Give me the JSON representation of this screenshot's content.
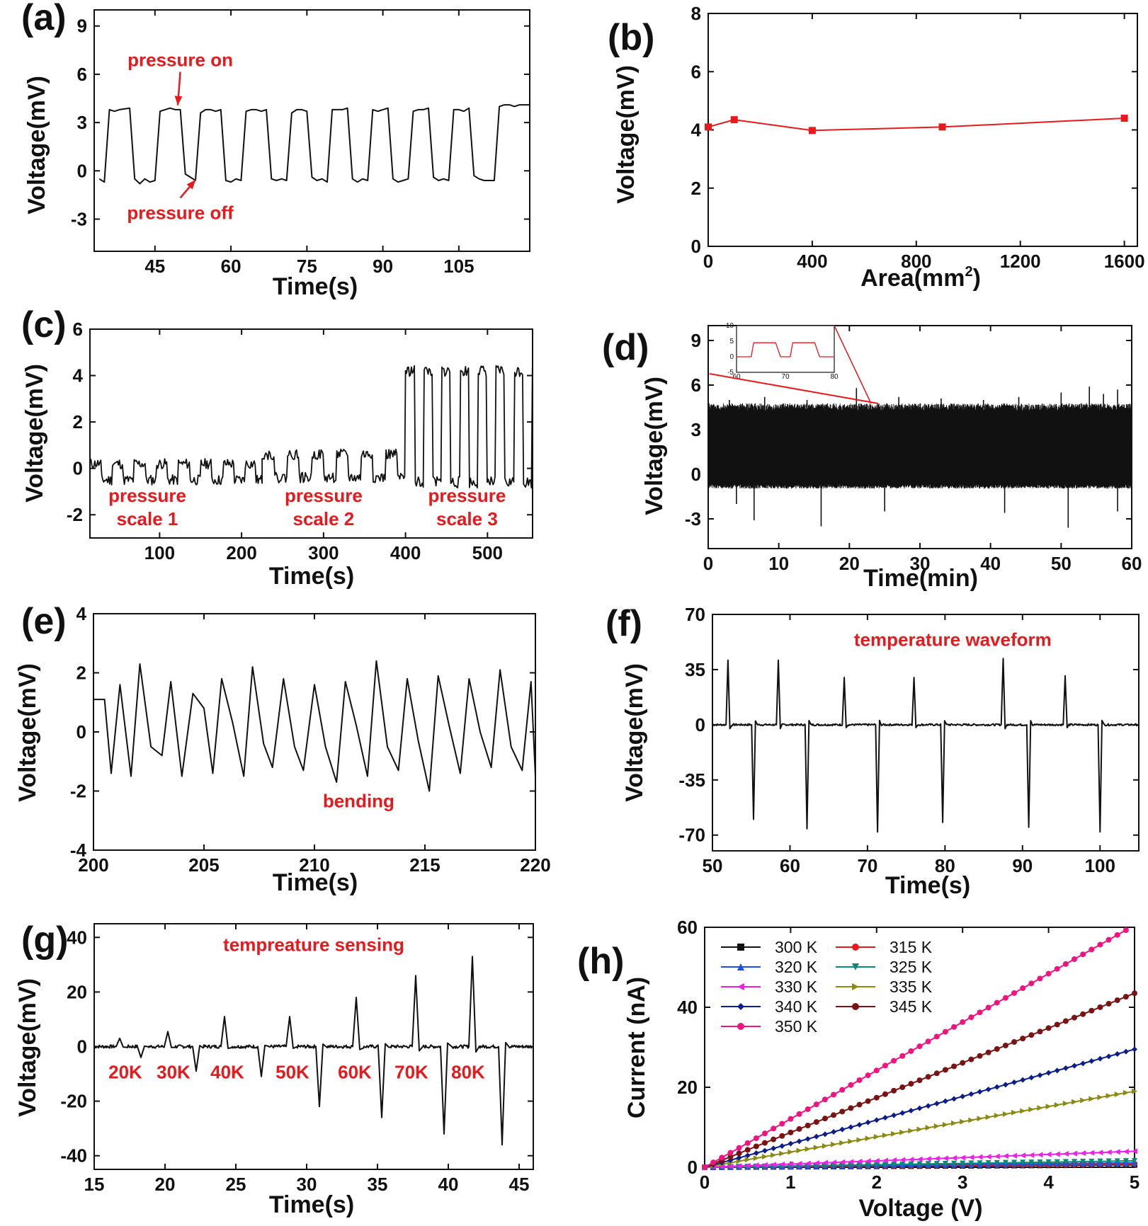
{
  "figure": {
    "panels": [
      {
        "id": "a",
        "label": "(a)",
        "type": "line",
        "xlabel": "Time(s)",
        "ylabel": "Voltage(mV)",
        "xlim": [
          33,
          119
        ],
        "ylim": [
          -5,
          10
        ],
        "xticks": [
          45,
          60,
          75,
          90,
          105
        ],
        "yticks": [
          -3,
          0,
          3,
          6,
          9
        ],
        "series": [
          {
            "color": "#111111",
            "x": [
              34,
              35,
              36,
              37,
              38,
              40,
              41,
              42,
              43,
              44,
              45,
              46,
              47,
              48,
              49,
              50,
              51,
              52,
              53,
              54,
              55,
              56,
              57,
              58,
              59,
              60,
              61,
              62,
              63,
              64,
              65,
              66,
              67,
              68,
              69,
              70,
              71,
              72,
              73,
              74,
              75,
              76,
              77,
              78,
              79,
              80,
              81,
              82,
              83,
              84,
              85,
              86,
              87,
              88,
              89,
              90,
              91,
              92,
              93,
              94,
              95,
              96,
              97,
              98,
              99,
              100,
              101,
              102,
              103,
              104,
              105,
              106,
              107,
              108,
              109,
              110,
              111,
              112,
              113,
              114,
              115,
              116,
              117,
              118,
              119
            ],
            "y": [
              -0.5,
              -0.7,
              3.8,
              3.7,
              3.8,
              3.9,
              -0.5,
              -0.8,
              -0.5,
              -0.7,
              -0.6,
              3.7,
              3.8,
              3.9,
              3.8,
              3.8,
              -0.2,
              -0.4,
              -0.6,
              3.6,
              3.8,
              3.8,
              3.7,
              3.8,
              -0.6,
              -0.7,
              -0.5,
              -0.6,
              3.7,
              3.8,
              3.8,
              3.7,
              3.8,
              -0.5,
              -0.6,
              -0.5,
              -0.6,
              3.6,
              3.8,
              3.8,
              3.7,
              -0.4,
              -0.6,
              -0.5,
              -0.7,
              3.8,
              3.8,
              3.8,
              3.9,
              -0.5,
              -0.7,
              -0.5,
              -0.6,
              3.8,
              3.7,
              3.8,
              3.9,
              -0.5,
              -0.7,
              -0.6,
              -0.5,
              3.7,
              3.8,
              3.8,
              3.9,
              -0.4,
              -0.6,
              -0.5,
              -0.6,
              3.8,
              3.8,
              3.7,
              3.9,
              -0.3,
              -0.5,
              -0.6,
              -0.6,
              -0.6,
              4.0,
              4.1,
              4.1,
              4.0,
              4.1,
              4.1,
              4.1
            ]
          }
        ],
        "annotations": [
          {
            "text": "pressure on",
            "x": 50,
            "y": 6.5,
            "arrow_to": [
              49.5,
              3.9
            ]
          },
          {
            "text": "pressure off",
            "x": 50,
            "y": -3,
            "arrow_to": [
              53,
              -0.3
            ]
          }
        ]
      },
      {
        "id": "b",
        "label": "(b)",
        "type": "line",
        "xlabel": "Area(mm",
        "xlabel_sup": "2",
        "xlabel_tail": ")",
        "ylabel": "Voltage(mV)",
        "xlim": [
          0,
          1650
        ],
        "ylim": [
          0,
          8
        ],
        "xticks": [
          0,
          400,
          800,
          1200,
          1600
        ],
        "yticks": [
          0,
          2,
          4,
          6,
          8
        ],
        "series": [
          {
            "color": "#e8191c",
            "marker": "square",
            "x": [
              0,
              100,
              400,
              900,
              1600
            ],
            "y": [
              4.1,
              4.35,
              3.98,
              4.1,
              4.4
            ]
          }
        ]
      },
      {
        "id": "c",
        "label": "(c)",
        "type": "line",
        "xlabel": "Time(s)",
        "ylabel": "Voltage(mV)",
        "xlim": [
          15,
          555
        ],
        "ylim": [
          -3,
          6
        ],
        "xticks": [
          100,
          200,
          300,
          400,
          500
        ],
        "yticks": [
          -2,
          0,
          2,
          4,
          6
        ],
        "segments": [
          {
            "x_from": 15,
            "x_to": 225,
            "period": 27,
            "low": -0.5,
            "high": 0.2,
            "seed": 11
          },
          {
            "x_from": 225,
            "x_to": 400,
            "period": 30,
            "low": -0.4,
            "high": 0.6,
            "seed": 22
          },
          {
            "x_from": 400,
            "x_to": 555,
            "period": 22,
            "low": -0.6,
            "high": 4.2,
            "seed": 33
          }
        ],
        "annotations": [
          {
            "text": "pressure",
            "x": 85,
            "y": -1.45
          },
          {
            "text": "scale 1",
            "x": 85,
            "y": -2.45
          },
          {
            "text": "pressure",
            "x": 300,
            "y": -1.45
          },
          {
            "text": "scale 2",
            "x": 300,
            "y": -2.45
          },
          {
            "text": "pressure",
            "x": 475,
            "y": -1.45
          },
          {
            "text": "scale 3",
            "x": 475,
            "y": -2.45
          }
        ]
      },
      {
        "id": "d",
        "label": "(d)",
        "type": "line",
        "xlabel": "Time(min)",
        "ylabel": "Voltage(mV)",
        "xlim": [
          0,
          60
        ],
        "ylim": [
          -5,
          10
        ],
        "xticks": [
          0,
          10,
          20,
          30,
          40,
          50,
          60
        ],
        "yticks": [
          -3,
          0,
          3,
          6,
          9
        ],
        "band": {
          "low": -0.8,
          "high": 4.5
        },
        "spikes_up": [
          [
            3,
            5.0
          ],
          [
            8,
            5.2
          ],
          [
            14,
            5.0
          ],
          [
            21,
            5.8
          ],
          [
            27,
            5.2
          ],
          [
            33,
            5.1
          ],
          [
            39,
            5.0
          ],
          [
            44,
            5.2
          ],
          [
            50,
            5.5
          ],
          [
            54,
            5.9
          ],
          [
            56,
            5.4
          ],
          [
            58,
            5.7
          ]
        ],
        "spikes_down": [
          [
            4,
            -2.0
          ],
          [
            6.5,
            -3.1
          ],
          [
            16,
            -3.5
          ],
          [
            25,
            -2.5
          ],
          [
            42,
            -2.6
          ],
          [
            51,
            -3.6
          ],
          [
            58,
            -2.5
          ]
        ],
        "inset": {
          "xlim": [
            60,
            80
          ],
          "ylim": [
            -5,
            10
          ],
          "xticks": [
            60,
            70,
            80
          ],
          "yticks": [
            -5,
            0,
            5,
            10
          ],
          "color": "#e8191c",
          "x": [
            60,
            61,
            62,
            63,
            63.5,
            64,
            65,
            66,
            67,
            68,
            69,
            70,
            71,
            71.5,
            72,
            73,
            74,
            75,
            76,
            77,
            78,
            79,
            80
          ],
          "y": [
            0,
            0,
            0,
            0,
            4.5,
            4.5,
            4.5,
            4.5,
            4.5,
            4.5,
            0,
            0,
            0,
            4.5,
            4.5,
            4.5,
            4.5,
            4.5,
            4.5,
            0,
            0,
            0,
            0
          ]
        }
      },
      {
        "id": "e",
        "label": "(e)",
        "type": "line",
        "xlabel": "Time(s)",
        "ylabel": "Voltage(mV)",
        "xlim": [
          200,
          220
        ],
        "ylim": [
          -4,
          4
        ],
        "xticks": [
          200,
          205,
          210,
          215,
          220
        ],
        "yticks": [
          -4,
          -2,
          0,
          2,
          4
        ],
        "series": [
          {
            "color": "#111111",
            "x": [
              200,
              200.5,
              200.8,
              201.2,
              201.7,
              202.1,
              202.6,
              203.1,
              203.5,
              204.0,
              204.5,
              205.0,
              205.4,
              205.8,
              206.3,
              206.8,
              207.2,
              207.7,
              208.1,
              208.6,
              209.1,
              209.5,
              210.0,
              210.5,
              211.0,
              211.4,
              211.9,
              212.4,
              212.8,
              213.3,
              213.8,
              214.2,
              214.7,
              215.2,
              215.6,
              216.1,
              216.6,
              217.0,
              217.5,
              218.0,
              218.4,
              218.9,
              219.4,
              219.8,
              220.0
            ],
            "y": [
              1.1,
              1.1,
              -1.4,
              1.6,
              -1.5,
              2.3,
              -0.5,
              -0.8,
              1.7,
              -1.5,
              1.3,
              0.8,
              -1.4,
              1.8,
              0.3,
              -1.5,
              2.2,
              -0.4,
              -1.2,
              1.8,
              -0.5,
              -1.3,
              1.6,
              -0.5,
              -1.7,
              1.7,
              0.2,
              -1.5,
              2.4,
              -0.5,
              -1.3,
              1.8,
              -0.3,
              -2.0,
              1.9,
              0.2,
              -1.4,
              1.8,
              0.0,
              -1.2,
              2.1,
              -0.5,
              -1.3,
              1.7,
              -1.5
            ]
          }
        ],
        "annotations": [
          {
            "text": "bending",
            "x": 212,
            "y": -2.55
          }
        ]
      },
      {
        "id": "f",
        "label": "(f)",
        "type": "line",
        "xlabel": "Time(s)",
        "ylabel": "Voltage(mV)",
        "xlim": [
          50,
          105
        ],
        "ylim": [
          -80,
          70
        ],
        "xticks": [
          50,
          60,
          70,
          80,
          90,
          100
        ],
        "yticks": [
          -70,
          -35,
          0,
          35,
          70
        ],
        "pos_peaks": [
          [
            52,
            41
          ],
          [
            58.5,
            41
          ],
          [
            67,
            30
          ],
          [
            76,
            30
          ],
          [
            87.5,
            42
          ],
          [
            95.5,
            31
          ]
        ],
        "neg_peaks": [
          [
            55.3,
            -60
          ],
          [
            62.2,
            -66
          ],
          [
            71.3,
            -68
          ],
          [
            79.7,
            -62
          ],
          [
            90.8,
            -65
          ],
          [
            100,
            -68
          ]
        ],
        "annotations": [
          {
            "text": "temperature waveform",
            "x": 81,
            "y": 50
          }
        ]
      },
      {
        "id": "g",
        "label": "(g)",
        "type": "line",
        "xlabel": "Time(s)",
        "ylabel": "Voltage(mV)",
        "xlim": [
          15,
          46
        ],
        "ylim": [
          -45,
          45
        ],
        "xticks": [
          15,
          20,
          25,
          30,
          35,
          40,
          45
        ],
        "yticks": [
          -40,
          -20,
          0,
          20,
          40
        ],
        "pos_peaks": [
          [
            16.8,
            3
          ],
          [
            20.2,
            5.5
          ],
          [
            24.2,
            11
          ],
          [
            28.8,
            11
          ],
          [
            33.5,
            18
          ],
          [
            37.7,
            26
          ],
          [
            41.7,
            33
          ]
        ],
        "neg_peaks": [
          [
            18.3,
            -4
          ],
          [
            22.2,
            -9
          ],
          [
            26.8,
            -11
          ],
          [
            30.9,
            -22
          ],
          [
            35.3,
            -26
          ],
          [
            39.7,
            -32
          ],
          [
            43.8,
            -36
          ]
        ],
        "annotations": [
          {
            "text": "tempreature sensing",
            "x": 30.5,
            "y": 35
          },
          {
            "text": "20K",
            "x": 17.2,
            "y": -6.5
          },
          {
            "text": "30K",
            "x": 20.6,
            "y": -6.5
          },
          {
            "text": "40K",
            "x": 24.4,
            "y": -6.5
          },
          {
            "text": "50K",
            "x": 29.0,
            "y": -6.5
          },
          {
            "text": "60K",
            "x": 33.4,
            "y": -6.5
          },
          {
            "text": "70K",
            "x": 37.4,
            "y": -6.5
          },
          {
            "text": "80K",
            "x": 41.4,
            "y": -6.5
          }
        ]
      },
      {
        "id": "h",
        "label": "(h)",
        "type": "scatter-line",
        "xlabel": "Voltage (V)",
        "ylabel": "Current (nA)",
        "xlim": [
          0,
          5
        ],
        "ylim": [
          0,
          60
        ],
        "xticks": [
          0,
          1,
          2,
          3,
          4,
          5
        ],
        "yticks": [
          0,
          20,
          40,
          60
        ],
        "series": [
          {
            "name": "300 K",
            "color": "#111111",
            "marker": "square",
            "slope": 0.12
          },
          {
            "name": "315 K",
            "color": "#e8191c",
            "marker": "circle",
            "slope": 0.16
          },
          {
            "name": "320 K",
            "color": "#1f4fe0",
            "marker": "triangle-up",
            "slope": 0.22
          },
          {
            "name": "325 K",
            "color": "#0b8a76",
            "marker": "triangle-down",
            "slope": 0.32
          },
          {
            "name": "330 K",
            "color": "#ee1fe8",
            "marker": "triangle-left",
            "slope": 0.8
          },
          {
            "name": "335 K",
            "color": "#8a8a12",
            "marker": "triangle-right",
            "slope": 3.8
          },
          {
            "name": "340 K",
            "color": "#0c1e8c",
            "marker": "diamond",
            "slope": 5.9
          },
          {
            "name": "345 K",
            "color": "#7a1414",
            "marker": "circle",
            "slope": 8.7
          },
          {
            "name": "350 K",
            "color": "#f0147f",
            "marker": "circle",
            "slope": 12.1
          }
        ]
      }
    ]
  }
}
